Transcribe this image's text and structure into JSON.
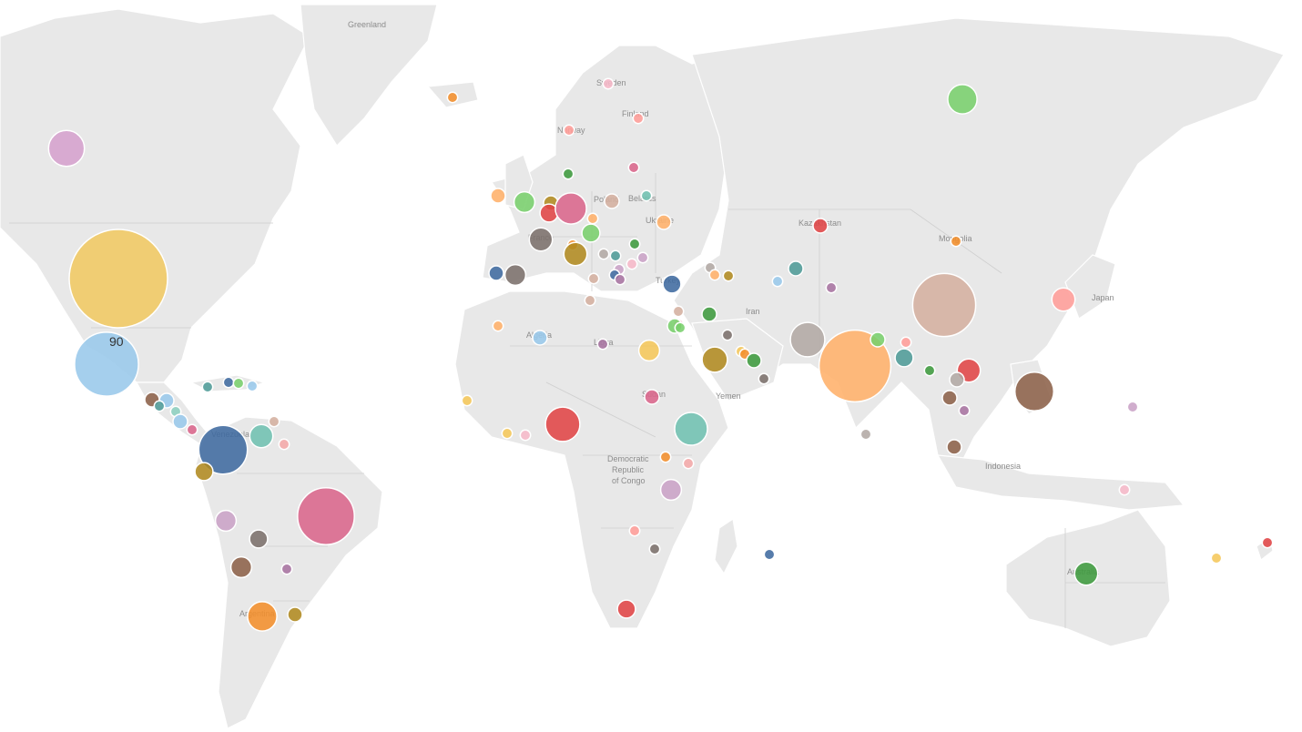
{
  "map": {
    "selected_label": "90",
    "place_labels": [
      "Greenland",
      "Finland",
      "Norway",
      "Kazakhstan",
      "Mongolia",
      "Iran",
      "Japan",
      "Yemen",
      "Indonesia",
      "Democratic",
      "Republic",
      "of Congo",
      "Algeria",
      "Libya",
      "Sudan",
      "Australia",
      "Venezuela",
      "Argentina",
      "Turkey",
      "Poland",
      "Belarus",
      "Ukraine",
      "France",
      "Sweden"
    ]
  },
  "colors": {
    "yellow": "#f0c862",
    "lightblue": "#98c8ea",
    "steelblue": "#3f6a9f",
    "pink": "#d9658b",
    "brown": "#8c6149",
    "orange": "#f28e2b",
    "peach": "#ffb06a",
    "red": "#e04446",
    "green": "#3d9a3d",
    "lightgreen": "#79cf6c",
    "teal": "#4e9b97",
    "olive": "#b08a20",
    "lilac": "#d5a0cd",
    "purple": "#a773a0",
    "gray": "#7b6f6b",
    "taupe": "#b2a9a4",
    "rose": "#f4a9a8",
    "salmon": "#ff9d98",
    "tan": "#d4af9f",
    "mauve": "#c9a2c6",
    "lightpink": "#f6b8c8",
    "mint": "#8ccfbf",
    "darkgray": "#6e6e6e",
    "seafoam": "#6fc0b0",
    "gold": "#f5c75a"
  },
  "bubbles": [
    {
      "country": "United States",
      "value": 90,
      "color": "yellow"
    },
    {
      "country": "Mexico",
      "value": 38,
      "color": "lightblue"
    },
    {
      "country": "Canada",
      "value": 12,
      "color": "lilac"
    },
    {
      "country": "Venezuela",
      "value": 22,
      "color": "steelblue"
    },
    {
      "country": "Brazil",
      "value": 30,
      "color": "pink"
    },
    {
      "country": "Argentina",
      "value": 8,
      "color": "orange"
    },
    {
      "country": "Colombia",
      "value": 3,
      "color": "olive"
    },
    {
      "country": "Peru",
      "value": 4,
      "color": "mauve"
    },
    {
      "country": "Bolivia",
      "value": 3,
      "color": "gray"
    },
    {
      "country": "Paraguay",
      "value": 4,
      "color": "brown"
    },
    {
      "country": "Uruguay",
      "value": 2,
      "color": "olive"
    },
    {
      "country": "Southern Brazil",
      "value": 1,
      "color": "purple"
    },
    {
      "country": "Guyana",
      "value": 5,
      "color": "seafoam"
    },
    {
      "country": "Suriname",
      "value": 1,
      "color": "rose"
    },
    {
      "country": "Trinidad",
      "value": 1,
      "color": "tan"
    },
    {
      "country": "Guatemala",
      "value": 2,
      "color": "brown"
    },
    {
      "country": "Honduras",
      "value": 2,
      "color": "lightblue"
    },
    {
      "country": "El Salvador",
      "value": 1,
      "color": "teal"
    },
    {
      "country": "Nicaragua",
      "value": 1,
      "color": "mint"
    },
    {
      "country": "Costa Rica",
      "value": 2,
      "color": "lightblue"
    },
    {
      "country": "Panama",
      "value": 1,
      "color": "pink"
    },
    {
      "country": "Cuba",
      "value": 1,
      "color": "teal"
    },
    {
      "country": "Haiti",
      "value": 1,
      "color": "steelblue"
    },
    {
      "country": "Dominican Republic",
      "value": 1,
      "color": "lightgreen"
    },
    {
      "country": "Puerto Rico",
      "value": 1,
      "color": "lightblue"
    },
    {
      "country": "Iceland",
      "value": 1,
      "color": "orange"
    },
    {
      "country": "Norway",
      "value": 1,
      "color": "salmon"
    },
    {
      "country": "Sweden",
      "value": 1,
      "color": "lightpink"
    },
    {
      "country": "Finland",
      "value": 1,
      "color": "salmon"
    },
    {
      "country": "Ireland",
      "value": 2,
      "color": "peach"
    },
    {
      "country": "United Kingdom",
      "value": 4,
      "color": "lightgreen"
    },
    {
      "country": "Denmark",
      "value": 1,
      "color": "green"
    },
    {
      "country": "Netherlands",
      "value": 2,
      "color": "olive"
    },
    {
      "country": "Belgium",
      "value": 3,
      "color": "red"
    },
    {
      "country": "Germany",
      "value": 9,
      "color": "pink"
    },
    {
      "country": "Poland",
      "value": 2,
      "color": "tan"
    },
    {
      "country": "Lithuania",
      "value": 1,
      "color": "pink"
    },
    {
      "country": "Belarus",
      "value": 1,
      "color": "seafoam"
    },
    {
      "country": "Ukraine",
      "value": 2,
      "color": "peach"
    },
    {
      "country": "Czechia",
      "value": 1,
      "color": "peach"
    },
    {
      "country": "Austria",
      "value": 3,
      "color": "lightgreen"
    },
    {
      "country": "France",
      "value": 5,
      "color": "gray"
    },
    {
      "country": "Switzerland",
      "value": 1,
      "color": "orange"
    },
    {
      "country": "Italy",
      "value": 5,
      "color": "olive"
    },
    {
      "country": "Hungary",
      "value": 1,
      "color": "green"
    },
    {
      "country": "Romania",
      "value": 1,
      "color": "mauve"
    },
    {
      "country": "Serbia",
      "value": 1,
      "color": "teal"
    },
    {
      "country": "Croatia",
      "value": 1,
      "color": "taupe"
    },
    {
      "country": "Bosnia",
      "value": 1,
      "color": "mauve"
    },
    {
      "country": "Montenegro",
      "value": 1,
      "color": "steelblue"
    },
    {
      "country": "Albania",
      "value": 1,
      "color": "purple"
    },
    {
      "country": "Bulgaria",
      "value": 1,
      "color": "lightpink"
    },
    {
      "country": "Greece",
      "value": 1,
      "color": "tan"
    },
    {
      "country": "Spain",
      "value": 4,
      "color": "gray"
    },
    {
      "country": "Portugal",
      "value": 2,
      "color": "steelblue"
    },
    {
      "country": "Turkey",
      "value": 3,
      "color": "steelblue"
    },
    {
      "country": "Georgia",
      "value": 1,
      "color": "taupe"
    },
    {
      "country": "Armenia",
      "value": 1,
      "color": "peach"
    },
    {
      "country": "Azerbaijan",
      "value": 1,
      "color": "olive"
    },
    {
      "country": "Cyprus",
      "value": 1,
      "color": "tan"
    },
    {
      "country": "Lebanon",
      "value": 1,
      "color": "lightpink"
    },
    {
      "country": "Israel",
      "value": 2,
      "color": "lightgreen"
    },
    {
      "country": "Jordan",
      "value": 1,
      "color": "lightgreen"
    },
    {
      "country": "Iraq",
      "value": 2,
      "color": "green"
    },
    {
      "country": "Kuwait",
      "value": 1,
      "color": "gray"
    },
    {
      "country": "Saudi Arabia",
      "value": 6,
      "color": "olive"
    },
    {
      "country": "Qatar",
      "value": 1,
      "color": "gold"
    },
    {
      "country": "Bahrain",
      "value": 1,
      "color": "orange"
    },
    {
      "country": "UAE",
      "value": 2,
      "color": "green"
    },
    {
      "country": "Oman",
      "value": 1,
      "color": "gray"
    },
    {
      "country": "Morocco",
      "value": 1,
      "color": "peach"
    },
    {
      "country": "Algeria",
      "value": 2,
      "color": "lightblue"
    },
    {
      "country": "Tunisia",
      "value": 1,
      "color": "tan"
    },
    {
      "country": "Libya",
      "value": 1,
      "color": "purple"
    },
    {
      "country": "Egypt",
      "value": 4,
      "color": "gold"
    },
    {
      "country": "Sudan",
      "value": 2,
      "color": "pink"
    },
    {
      "country": "Senegal",
      "value": 1,
      "color": "gold"
    },
    {
      "country": "Ghana",
      "value": 1,
      "color": "gold"
    },
    {
      "country": "Togo",
      "value": 1,
      "color": "lightpink"
    },
    {
      "country": "Nigeria",
      "value": 11,
      "color": "red"
    },
    {
      "country": "Ethiopia",
      "value": 10,
      "color": "seafoam"
    },
    {
      "country": "Uganda",
      "value": 1,
      "color": "orange"
    },
    {
      "country": "Kenya",
      "value": 1,
      "color": "rose"
    },
    {
      "country": "Tanzania",
      "value": 4,
      "color": "mauve"
    },
    {
      "country": "Zambia",
      "value": 1,
      "color": "salmon"
    },
    {
      "country": "Zimbabwe",
      "value": 1,
      "color": "gray"
    },
    {
      "country": "South Africa",
      "value": 3,
      "color": "red"
    },
    {
      "country": "Mauritius",
      "value": 1,
      "color": "steelblue"
    },
    {
      "country": "Kazakhstan",
      "value": 2,
      "color": "red"
    },
    {
      "country": "Uzbekistan",
      "value": 2,
      "color": "teal"
    },
    {
      "country": "Tajikistan",
      "value": 1,
      "color": "lightblue"
    },
    {
      "country": "Russia",
      "value": 8,
      "color": "lightgreen"
    },
    {
      "country": "Mongolia",
      "value": 1,
      "color": "orange"
    },
    {
      "country": "Pakistan",
      "value": 11,
      "color": "taupe"
    },
    {
      "country": "Kashmir",
      "value": 1,
      "color": "purple"
    },
    {
      "country": "India",
      "value": 48,
      "color": "peach"
    },
    {
      "country": "Sri Lanka",
      "value": 1,
      "color": "taupe"
    },
    {
      "country": "Nepal",
      "value": 2,
      "color": "lightgreen"
    },
    {
      "country": "Bhutan",
      "value": 1,
      "color": "salmon"
    },
    {
      "country": "Bangladesh",
      "value": 3,
      "color": "teal"
    },
    {
      "country": "Myanmar",
      "value": 1,
      "color": "green"
    },
    {
      "country": "China",
      "value": 37,
      "color": "tan"
    },
    {
      "country": "Japan",
      "value": 5,
      "color": "salmon"
    },
    {
      "country": "Vietnam",
      "value": 5,
      "color": "red"
    },
    {
      "country": "Laos",
      "value": 2,
      "color": "taupe"
    },
    {
      "country": "Thailand",
      "value": 2,
      "color": "brown"
    },
    {
      "country": "Cambodia",
      "value": 1,
      "color": "purple"
    },
    {
      "country": "Philippines",
      "value": 14,
      "color": "brown"
    },
    {
      "country": "Malaysia",
      "value": 2,
      "color": "brown"
    },
    {
      "country": "Palau",
      "value": 1,
      "color": "mauve"
    },
    {
      "country": "Papua New Guinea",
      "value": 1,
      "color": "lightpink"
    },
    {
      "country": "Australia",
      "value": 5,
      "color": "green"
    },
    {
      "country": "Fiji",
      "value": 1,
      "color": "gold"
    },
    {
      "country": "New Zealand",
      "value": 1,
      "color": "red"
    }
  ]
}
